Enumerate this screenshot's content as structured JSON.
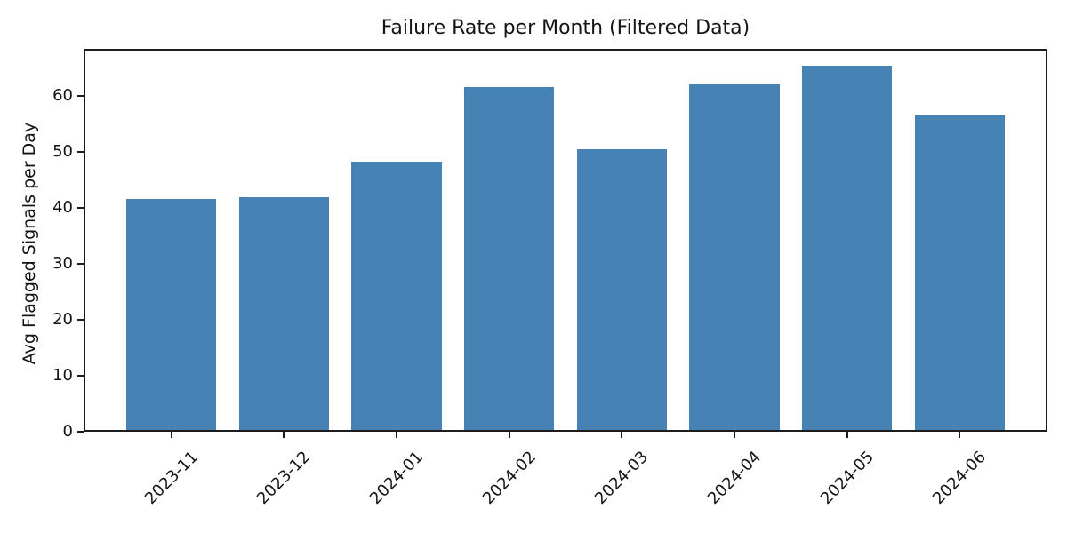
{
  "figure": {
    "background_color": "#ffffff",
    "text_color": "#141414",
    "spine_color": "#1c1c1c"
  },
  "chart_data": {
    "type": "bar",
    "title": "Failure Rate per Month (Filtered Data)",
    "xlabel": "",
    "ylabel": "Avg Flagged Signals per Day",
    "categories": [
      "2023-11",
      "2023-12",
      "2024-01",
      "2024-02",
      "2024-03",
      "2024-04",
      "2024-05",
      "2024-06"
    ],
    "values": [
      41.2,
      41.6,
      47.9,
      61.2,
      50.1,
      61.7,
      65.0,
      56.2
    ],
    "series_name": "Avg flagged signals per day",
    "ylim": [
      0,
      68.4
    ],
    "yticks": [
      0,
      10,
      20,
      30,
      40,
      50,
      60
    ],
    "bar_color": "#4682b4",
    "bar_width_fraction": 0.8,
    "grid": false,
    "legend": false,
    "x_tick_rotation_deg": 45
  }
}
